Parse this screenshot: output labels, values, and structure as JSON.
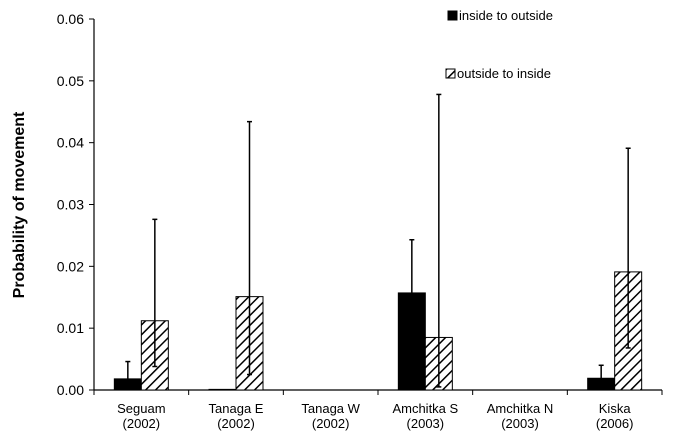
{
  "chart_data": {
    "type": "bar",
    "title": "",
    "xlabel": "",
    "ylabel": "Probability of movement",
    "ylim": [
      0,
      0.06
    ],
    "yticks": [
      "0.00",
      "0.01",
      "0.02",
      "0.03",
      "0.04",
      "0.05",
      "0.06"
    ],
    "grid": false,
    "legend_position": "top-right",
    "categories": [
      [
        "Seguam",
        "(2002)"
      ],
      [
        "Tanaga E",
        "(2002)"
      ],
      [
        "Tanaga W",
        "(2002)"
      ],
      [
        "Amchitka S",
        "(2003)"
      ],
      [
        "Amchitka N",
        "(2003)"
      ],
      [
        "Kiska",
        "(2006)"
      ]
    ],
    "series": [
      {
        "name": "inside to outside",
        "style": "solid",
        "color": "#000000",
        "values": [
          0.0018,
          0.0001,
          0.0,
          0.0157,
          0.0,
          0.0019
        ],
        "error_upper": [
          0.0046,
          null,
          null,
          0.0243,
          null,
          0.004
        ]
      },
      {
        "name": "outside to inside",
        "style": "hatched",
        "color": "#000000",
        "values": [
          0.0112,
          0.0151,
          0.0,
          0.0085,
          0.0,
          0.0191
        ],
        "error_upper": [
          0.0276,
          0.0434,
          null,
          0.0478,
          null,
          0.0391
        ],
        "error_lower": [
          0.0038,
          0.0025,
          null,
          0.0005,
          null,
          0.0068
        ]
      }
    ]
  }
}
